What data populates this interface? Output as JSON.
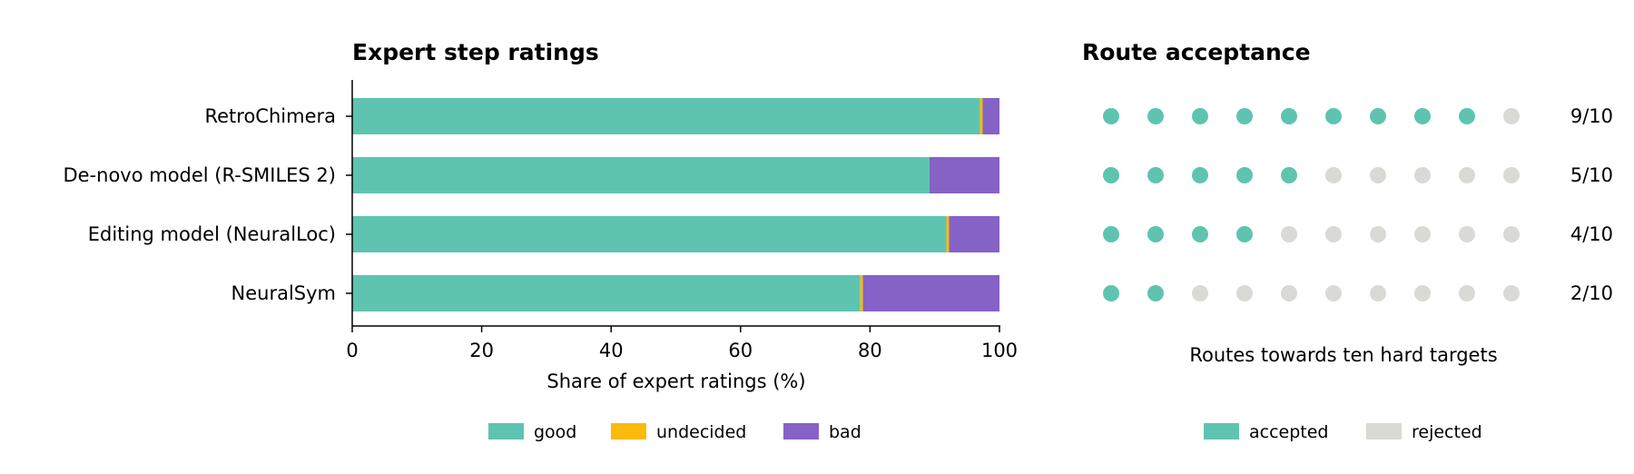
{
  "colors": {
    "good": "#5ec4b0",
    "undecided": "#fbb90a",
    "bad": "#8562c5",
    "accepted": "#5ec4b0",
    "rejected": "#d9d9d6"
  },
  "chart_data": [
    {
      "type": "bar",
      "orientation": "horizontal",
      "stacked": true,
      "title": "Expert step ratings",
      "xlabel": "Share of expert ratings (%)",
      "ylabel": "",
      "xlim": [
        0,
        100
      ],
      "xticks": [
        0,
        20,
        40,
        60,
        80,
        100
      ],
      "categories": [
        "RetroChimera",
        "De-novo model (R-SMILES 2)",
        "Editing model (NeuralLoc)",
        "NeuralSym"
      ],
      "series": [
        {
          "name": "good",
          "values": [
            97.0,
            89.2,
            91.8,
            78.5
          ]
        },
        {
          "name": "undecided",
          "values": [
            0.4,
            0.0,
            0.4,
            0.4
          ]
        },
        {
          "name": "bad",
          "values": [
            2.6,
            10.8,
            7.8,
            21.1
          ]
        }
      ],
      "legend": {
        "placement": "bottom-center",
        "entries": [
          "good",
          "undecided",
          "bad"
        ]
      },
      "grid": false
    },
    {
      "type": "dot-matrix",
      "title": "Route acceptance",
      "xlabel": "Routes towards ten hard targets",
      "categories": [
        "RetroChimera",
        "De-novo model (R-SMILES 2)",
        "Editing model (NeuralLoc)",
        "NeuralSym"
      ],
      "total": 10,
      "accepted": [
        9,
        5,
        4,
        2
      ],
      "fraction_labels": [
        "9/10",
        "5/10",
        "4/10",
        "2/10"
      ],
      "legend": {
        "placement": "bottom-center",
        "entries": [
          "accepted",
          "rejected"
        ]
      }
    }
  ]
}
